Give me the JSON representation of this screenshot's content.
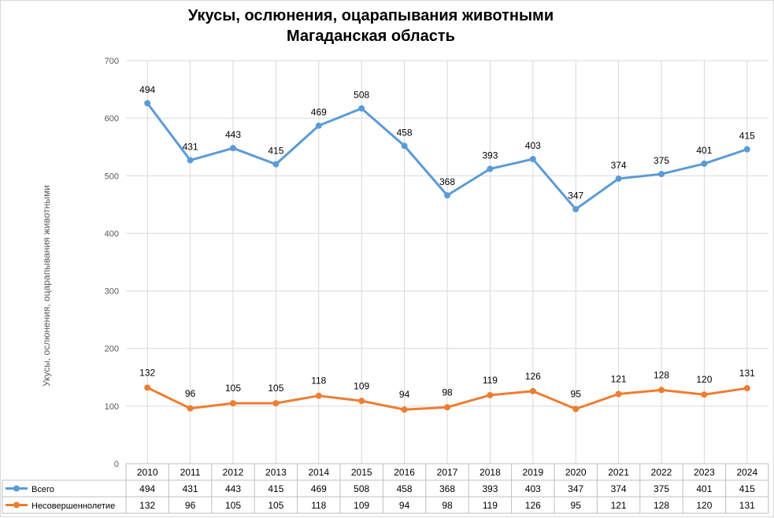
{
  "chart_data": {
    "type": "line",
    "title": "Укусы, ослюнения, оцарапывания животными",
    "subtitle": "Магаданская область",
    "ylabel": "Укусы, ослюнения, оцарапывания животными",
    "ylim": [
      0,
      700
    ],
    "yticks": [
      0,
      100,
      200,
      300,
      400,
      500,
      600,
      700
    ],
    "grid": true,
    "legend": "data-table",
    "categories": [
      "2010",
      "2011",
      "2012",
      "2013",
      "2014",
      "2015",
      "2016",
      "2017",
      "2018",
      "2019",
      "2020",
      "2021",
      "2022",
      "2023",
      "2024"
    ],
    "series": [
      {
        "name": "Всего",
        "color": "#5b9bd5",
        "values": [
          626,
          527,
          548,
          520,
          587,
          617,
          552,
          466,
          512,
          529,
          442,
          495,
          503,
          521,
          546
        ],
        "labels": [
          "494",
          "431",
          "443",
          "415",
          "469",
          "508",
          "458",
          "368",
          "393",
          "403",
          "347",
          "374",
          "375",
          "401",
          "415"
        ]
      },
      {
        "name": "Несовершеннолетие",
        "color": "#ed7d31",
        "values": [
          132,
          96,
          105,
          105,
          118,
          109,
          94,
          98,
          119,
          126,
          95,
          121,
          128,
          120,
          131
        ],
        "labels": [
          "132",
          "96",
          "105",
          "105",
          "118",
          "109",
          "94",
          "98",
          "119",
          "126",
          "95",
          "121",
          "128",
          "120",
          "131"
        ]
      }
    ]
  }
}
